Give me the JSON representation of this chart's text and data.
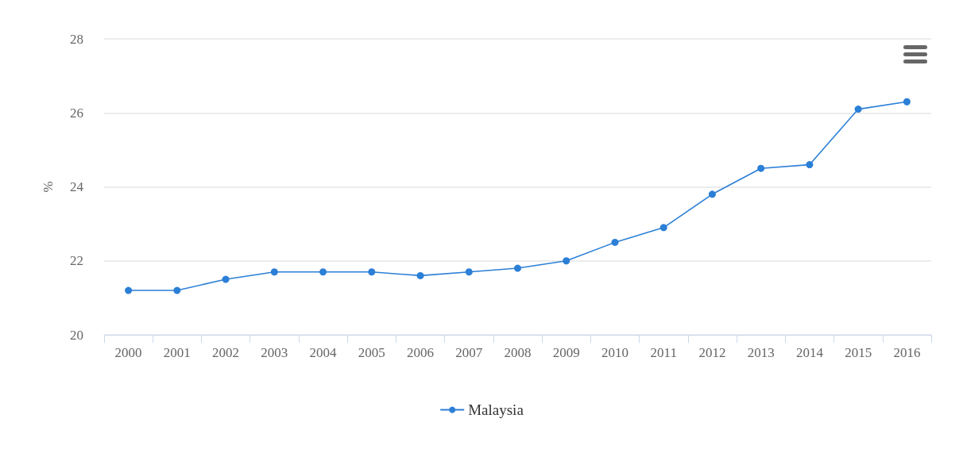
{
  "chart_data": {
    "type": "line",
    "ylabel": "%",
    "categories": [
      "2000",
      "2001",
      "2002",
      "2003",
      "2004",
      "2005",
      "2006",
      "2007",
      "2008",
      "2009",
      "2010",
      "2011",
      "2012",
      "2013",
      "2014",
      "2015",
      "2016"
    ],
    "series": [
      {
        "name": "Malaysia",
        "color": "#2b7fd6",
        "values": [
          21.2,
          21.2,
          21.5,
          21.7,
          21.7,
          21.7,
          21.6,
          21.7,
          21.8,
          22.0,
          22.5,
          22.9,
          23.8,
          24.5,
          24.6,
          26.1,
          26.3
        ]
      }
    ],
    "ylim": [
      20,
      28
    ],
    "yticks": [
      20,
      22,
      24,
      26,
      28
    ],
    "grid": "y",
    "legend": "bottom",
    "marker": "circle",
    "line_style": "solid"
  }
}
